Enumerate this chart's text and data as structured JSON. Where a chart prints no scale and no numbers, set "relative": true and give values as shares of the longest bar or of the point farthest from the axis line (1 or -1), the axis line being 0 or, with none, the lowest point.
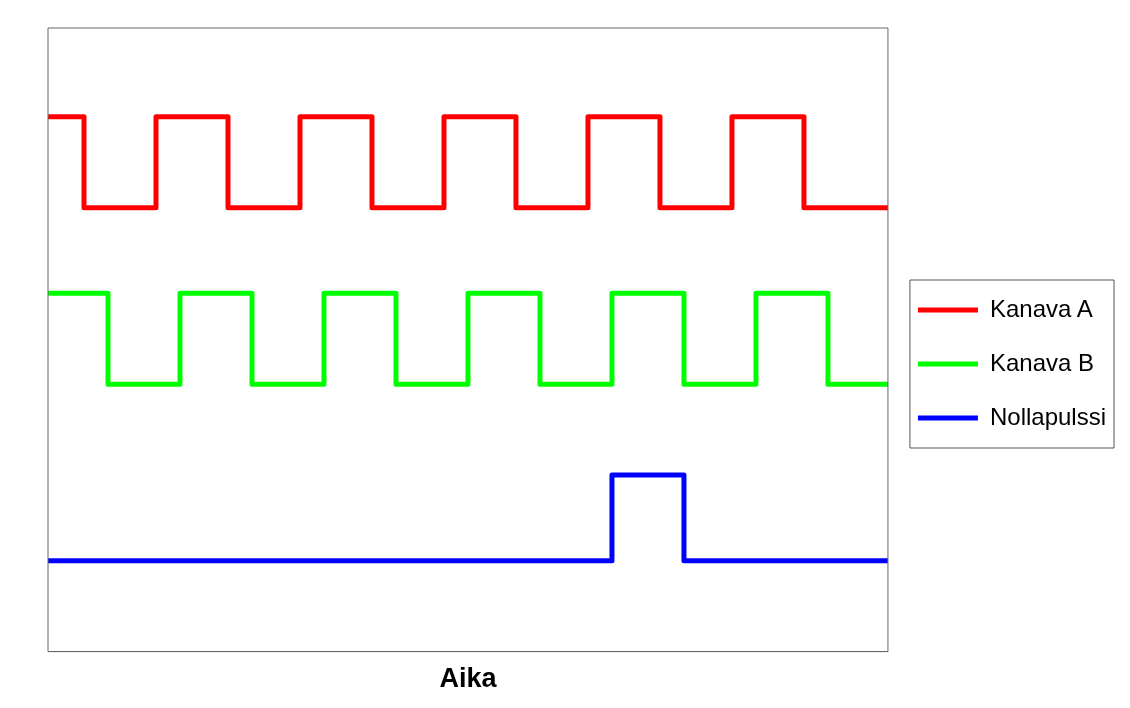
{
  "chart_data": {
    "type": "step",
    "xlabel": "Aika",
    "relative": true,
    "legend": "right",
    "tick_labels": false,
    "categories": [
      null,
      null,
      null,
      null,
      null,
      null,
      null,
      null,
      null,
      null,
      null,
      null,
      null,
      null,
      null,
      null,
      null,
      null,
      null,
      null,
      null,
      null,
      null,
      null,
      null,
      null,
      null,
      null,
      null,
      null,
      null,
      null,
      null,
      null,
      null,
      null,
      null,
      null,
      null,
      null,
      null,
      null,
      null,
      null,
      null,
      null,
      null,
      null,
      null,
      null,
      null,
      null,
      null,
      null,
      null,
      null,
      null,
      null,
      null,
      null,
      null,
      null,
      null,
      null,
      null,
      null,
      null,
      null,
      null,
      null,
      null
    ],
    "series": [
      {
        "name": "Kanava A",
        "color": "#ff0000",
        "values": [
          1,
          1,
          1,
          1,
          0.83,
          0.83,
          0.83,
          0.83,
          0.83,
          0.83,
          1,
          1,
          1,
          1,
          1,
          1,
          0.83,
          0.83,
          0.83,
          0.83,
          0.83,
          0.83,
          1,
          1,
          1,
          1,
          1,
          1,
          0.83,
          0.83,
          0.83,
          0.83,
          0.83,
          0.83,
          1,
          1,
          1,
          1,
          1,
          1,
          0.83,
          0.83,
          0.83,
          0.83,
          0.83,
          0.83,
          1,
          1,
          1,
          1,
          1,
          1,
          0.83,
          0.83,
          0.83,
          0.83,
          0.83,
          0.83,
          1,
          1,
          1,
          1,
          1,
          1,
          0.83,
          0.83,
          0.83,
          0.83,
          0.83,
          0.83,
          0.83
        ]
      },
      {
        "name": "Kanava B",
        "color": "#00ff00",
        "values": [
          0.67,
          0.67,
          0.67,
          0.67,
          0.67,
          0.67,
          0.5,
          0.5,
          0.5,
          0.5,
          0.5,
          0.5,
          0.67,
          0.67,
          0.67,
          0.67,
          0.67,
          0.67,
          0.5,
          0.5,
          0.5,
          0.5,
          0.5,
          0.5,
          0.67,
          0.67,
          0.67,
          0.67,
          0.67,
          0.67,
          0.5,
          0.5,
          0.5,
          0.5,
          0.5,
          0.5,
          0.67,
          0.67,
          0.67,
          0.67,
          0.67,
          0.67,
          0.5,
          0.5,
          0.5,
          0.5,
          0.5,
          0.5,
          0.67,
          0.67,
          0.67,
          0.67,
          0.67,
          0.67,
          0.5,
          0.5,
          0.5,
          0.5,
          0.5,
          0.5,
          0.67,
          0.67,
          0.67,
          0.67,
          0.67,
          0.67,
          0.5,
          0.5,
          0.5,
          0.5,
          0.5
        ]
      },
      {
        "name": "Nollapulssi",
        "color": "#0000ff",
        "values": [
          0.17,
          0.17,
          0.17,
          0.17,
          0.17,
          0.17,
          0.17,
          0.17,
          0.17,
          0.17,
          0.17,
          0.17,
          0.17,
          0.17,
          0.17,
          0.17,
          0.17,
          0.17,
          0.17,
          0.17,
          0.17,
          0.17,
          0.17,
          0.17,
          0.17,
          0.17,
          0.17,
          0.17,
          0.17,
          0.17,
          0.17,
          0.17,
          0.17,
          0.17,
          0.17,
          0.17,
          0.17,
          0.17,
          0.17,
          0.17,
          0.17,
          0.17,
          0.17,
          0.17,
          0.17,
          0.17,
          0.17,
          0.17,
          0.33,
          0.33,
          0.33,
          0.33,
          0.33,
          0.33,
          0.17,
          0.17,
          0.17,
          0.17,
          0.17,
          0.17,
          0.17,
          0.17,
          0.17,
          0.17,
          0.17,
          0.17,
          0.17,
          0.17,
          0.17,
          0.17,
          0.17
        ]
      }
    ]
  }
}
